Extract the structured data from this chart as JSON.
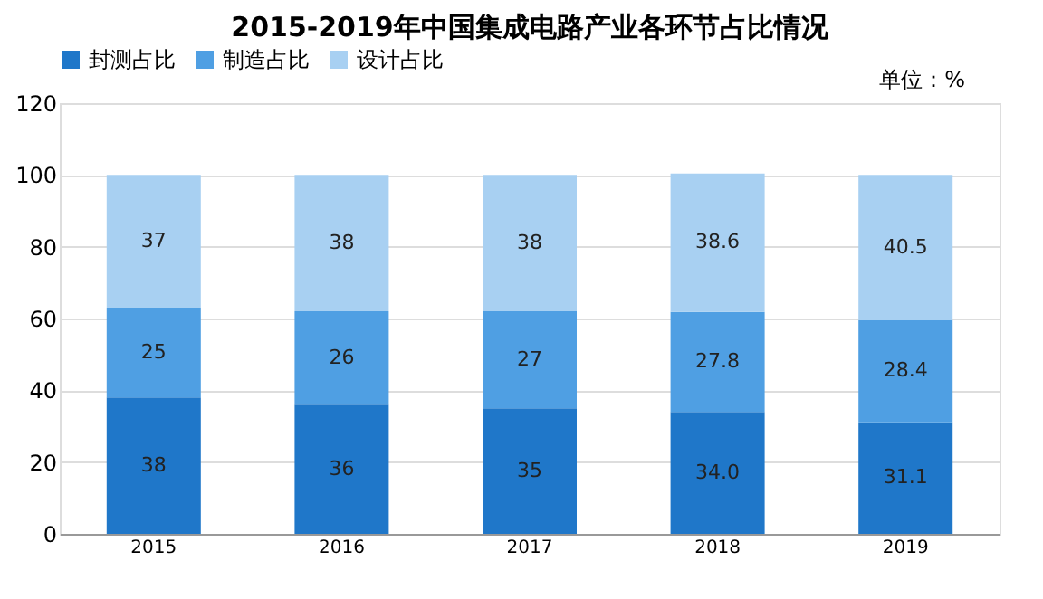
{
  "chart_data": {
    "type": "bar",
    "title": "2015-2019年中国集成电路产业各环节占比情况",
    "categories": [
      "2015",
      "2016",
      "2017",
      "2018",
      "2019"
    ],
    "stacked": true,
    "series": [
      {
        "name": "封测占比",
        "color": "#1f77c9",
        "values": [
          38,
          36,
          35,
          34.0,
          31.1
        ],
        "value_labels": [
          "38",
          "36",
          "35",
          "34.0",
          "31.1"
        ]
      },
      {
        "name": "制造占比",
        "color": "#4f9fe3",
        "values": [
          25,
          26,
          27,
          27.8,
          28.4
        ],
        "value_labels": [
          "25",
          "26",
          "27",
          "27.8",
          "28.4"
        ]
      },
      {
        "name": "设计占比",
        "color": "#a8d0f2",
        "values": [
          37,
          38,
          38,
          38.6,
          40.5
        ],
        "value_labels": [
          "37",
          "38",
          "38",
          "38.6",
          "40.5"
        ]
      }
    ],
    "ylim": [
      0,
      120
    ],
    "yticks": [
      0,
      20,
      40,
      60,
      80,
      100,
      120
    ],
    "grid": "y",
    "legend": "top",
    "annotations": [
      "单位：%"
    ]
  }
}
